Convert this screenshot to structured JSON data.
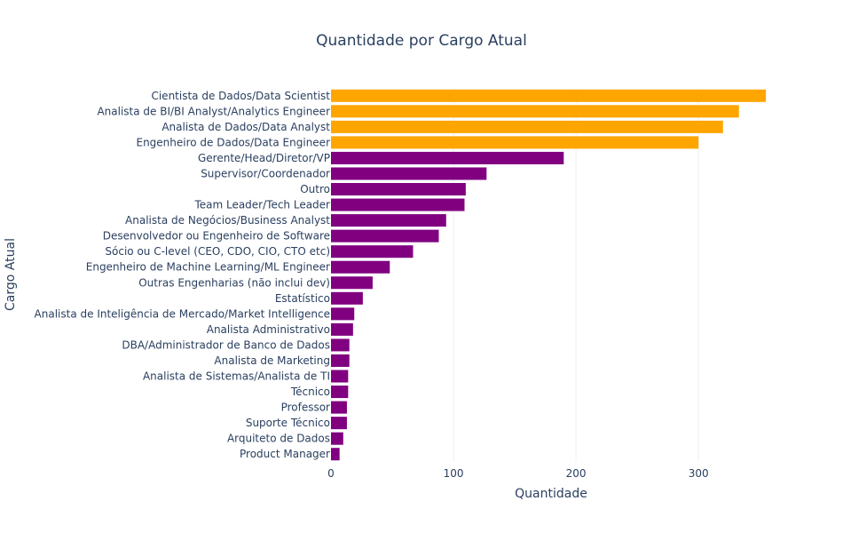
{
  "chart_data": {
    "type": "bar",
    "orientation": "horizontal",
    "title": "Quantidade por Cargo Atual",
    "xlabel": "Quantidade",
    "ylabel": "Cargo Atual",
    "xlim": [
      0,
      360
    ],
    "x_ticks": [
      0,
      100,
      200,
      300
    ],
    "x_tick_labels": [
      "0",
      "100",
      "200",
      "300"
    ],
    "grid": true,
    "legend": "none",
    "colors": {
      "highlight": "#FFA500",
      "default": "#800080"
    },
    "categories": [
      "Cientista de Dados/Data Scientist",
      "Analista de BI/BI Analyst/Analytics Engineer",
      "Analista de Dados/Data Analyst",
      "Engenheiro de Dados/Data Engineer",
      "Gerente/Head/Diretor/VP",
      "Supervisor/Coordenador",
      "Outro",
      "Team Leader/Tech Leader",
      "Analista de Negócios/Business Analyst",
      "Desenvolvedor ou Engenheiro de Software",
      "Sócio ou C-level (CEO, CDO, CIO, CTO etc)",
      "Engenheiro de Machine Learning/ML Engineer",
      "Outras Engenharias (não inclui dev)",
      "Estatístico",
      "Analista de Inteligência de Mercado/Market Intelligence",
      "Analista Administrativo",
      "DBA/Administrador de Banco de Dados",
      "Analista de Marketing",
      "Analista de Sistemas/Analista de TI",
      "Técnico",
      "Professor",
      "Suporte Técnico",
      "Arquiteto de Dados",
      "Product Manager"
    ],
    "values": [
      355,
      333,
      320,
      300,
      190,
      127,
      110,
      109,
      94,
      88,
      67,
      48,
      34,
      26,
      19,
      18,
      15,
      15,
      14,
      14,
      13,
      13,
      10,
      7
    ],
    "highlighted_count": 4
  }
}
